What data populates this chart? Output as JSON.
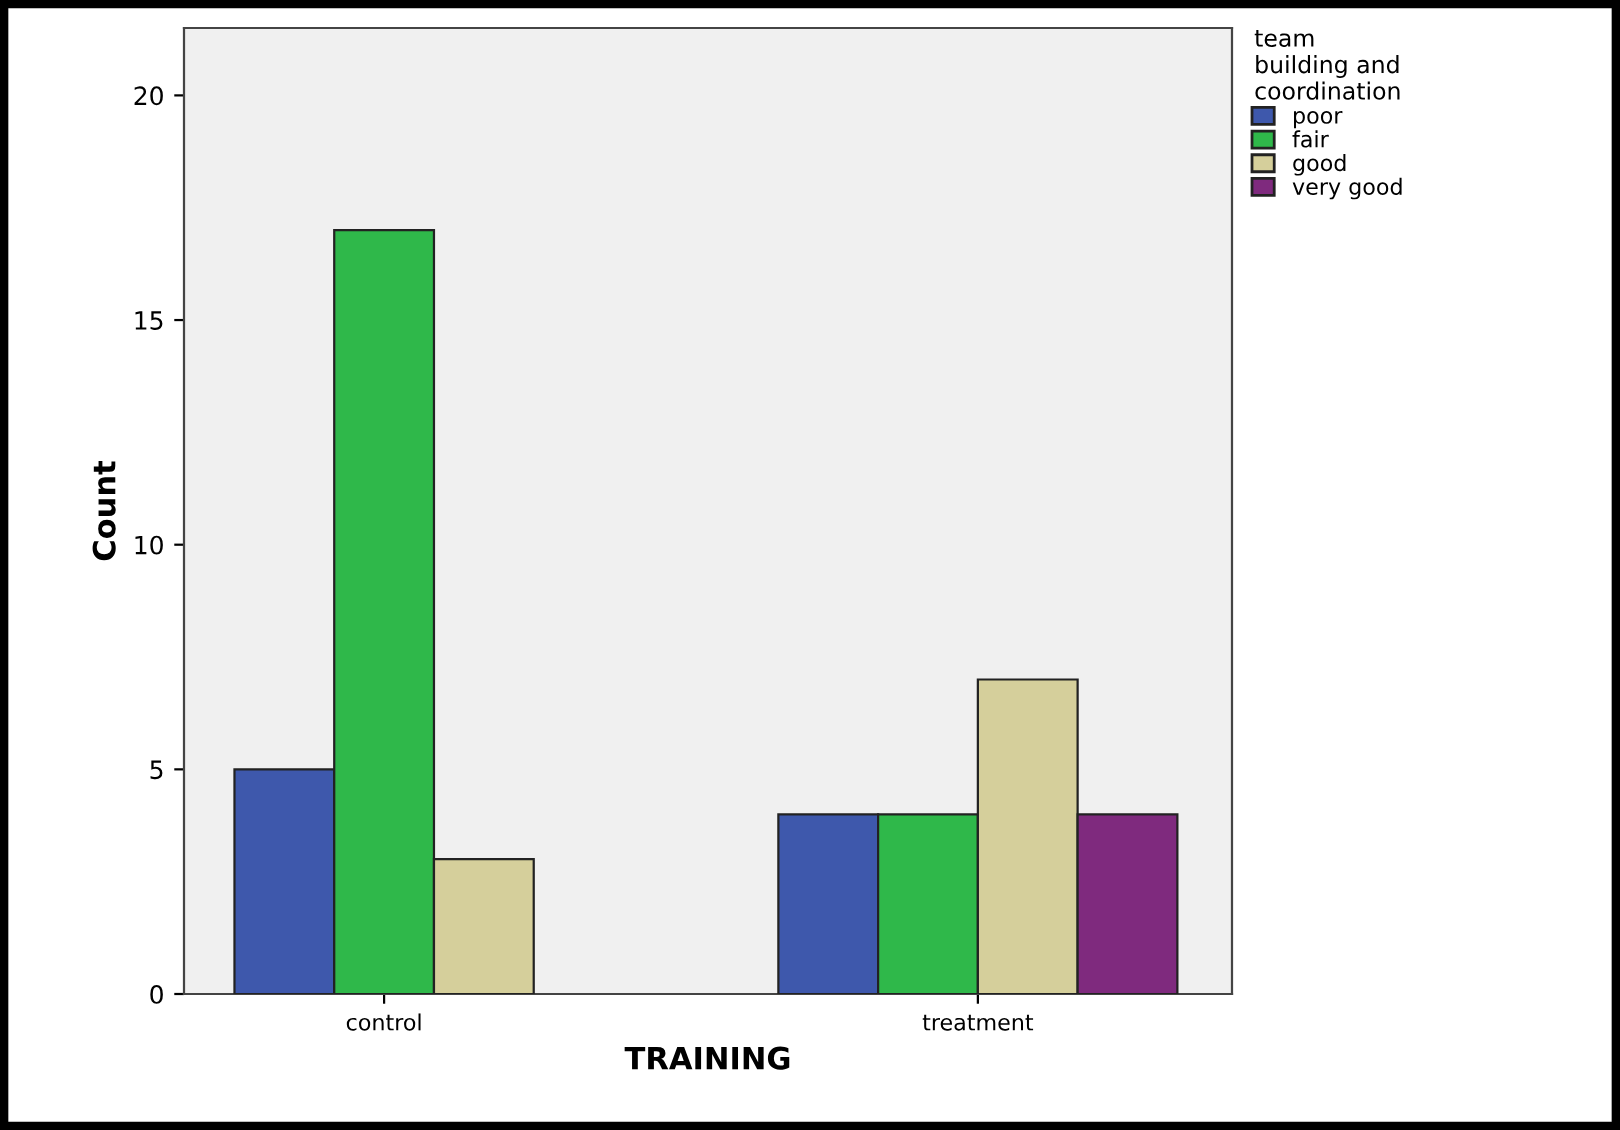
{
  "chart_data": {
    "type": "bar",
    "xlabel": "TRAINING",
    "ylabel": "Count",
    "legend_title": "team\nbuilding and\ncoordination",
    "categories": [
      "control",
      "treatment"
    ],
    "series": [
      {
        "name": "poor",
        "color": "#3e58ac",
        "values": [
          5,
          4
        ]
      },
      {
        "name": "fair",
        "color": "#2fb84a",
        "values": [
          17,
          4
        ]
      },
      {
        "name": "good",
        "color": "#d5cf9b",
        "values": [
          3,
          7
        ]
      },
      {
        "name": "very good",
        "color": "#7f2a7e",
        "values": [
          null,
          4
        ]
      }
    ],
    "ylim": [
      0,
      21.5
    ],
    "yticks": [
      0,
      5,
      10,
      15,
      20
    ],
    "grid": false,
    "legend": "top right"
  }
}
